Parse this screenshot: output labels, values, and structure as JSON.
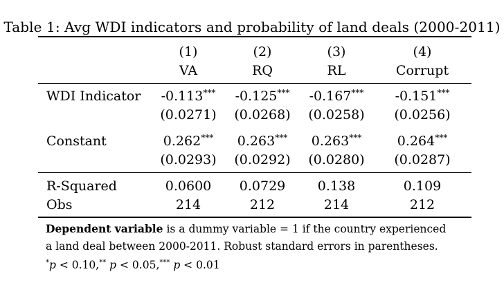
{
  "caption": "Table 1: Avg WDI indicators and probability of land deals (2000-2011)",
  "columns": [
    {
      "number": "(1)",
      "label": "VA"
    },
    {
      "number": "(2)",
      "label": "RQ"
    },
    {
      "number": "(3)",
      "label": "RL"
    },
    {
      "number": "(4)",
      "label": "Corrupt"
    }
  ],
  "rows": {
    "wdi": {
      "label": "WDI Indicator",
      "coefs": [
        "-0.113",
        "-0.125",
        "-0.167",
        "-0.151"
      ],
      "stars": [
        "***",
        "***",
        "***",
        "***"
      ],
      "ses": [
        "(0.0271)",
        "(0.0268)",
        "(0.0258)",
        "(0.0256)"
      ]
    },
    "constant": {
      "label": "Constant",
      "coefs": [
        "0.262",
        "0.263",
        "0.263",
        "0.264"
      ],
      "stars": [
        "***",
        "***",
        "***",
        "***"
      ],
      "ses": [
        "(0.0293)",
        "(0.0292)",
        "(0.0280)",
        "(0.0287)"
      ]
    },
    "rsq": {
      "label": "R-Squared",
      "values": [
        "0.0600",
        "0.0729",
        "0.138",
        "0.109"
      ]
    },
    "obs": {
      "label": "Obs",
      "values": [
        "214",
        "212",
        "214",
        "212"
      ]
    }
  },
  "notes": {
    "bold": "Dependent variable",
    "line1_rest": " is a dummy variable = 1 if the country experienced",
    "line2": "a land deal between 2000-2011. Robust standard errors in parentheses.",
    "sig": {
      "s1": "*",
      "p1": "p",
      "t1": " < 0.10,",
      "s2": "**",
      "p2": "p",
      "t2": " < 0.05,",
      "s3": "***",
      "p3": "p",
      "t3": " < 0.01"
    }
  }
}
